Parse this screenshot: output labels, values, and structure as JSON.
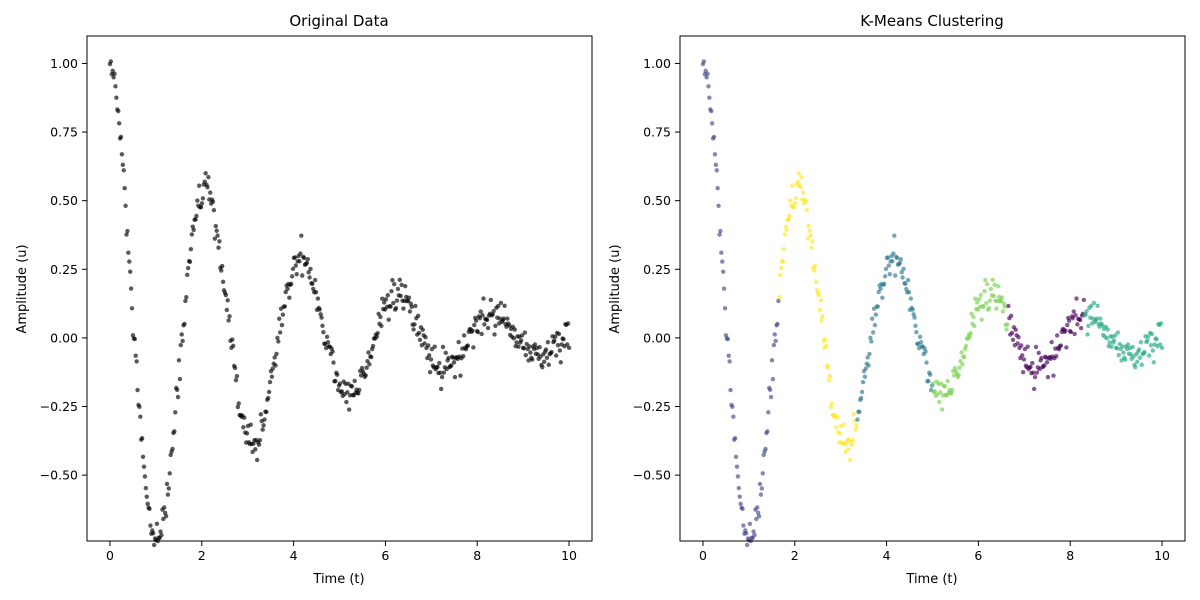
{
  "chart_data": [
    {
      "type": "scatter",
      "title": "Original Data",
      "xlabel": "Time (t)",
      "ylabel": "Amplitude (u)",
      "xlim": [
        -0.5,
        10.5
      ],
      "ylim": [
        -0.74,
        1.1
      ],
      "xticks": [
        "0",
        "2",
        "4",
        "6",
        "8",
        "10"
      ],
      "yticks": [
        "−0.50",
        "−0.25",
        "0.00",
        "0.25",
        "0.50",
        "0.75",
        "1.00"
      ],
      "grid": false,
      "legend": "none",
      "point_color": "#000000",
      "model": {
        "form": "u(t) = exp(-0.3 t) cos(3 t)",
        "t_range": [
          0,
          10
        ],
        "n_points": 500,
        "noise_sd": 0.03
      }
    },
    {
      "type": "scatter",
      "title": "K-Means Clustering",
      "xlabel": "Time (t)",
      "ylabel": "Amplitude (u)",
      "xlim": [
        -0.5,
        10.5
      ],
      "ylim": [
        -0.74,
        1.1
      ],
      "xticks": [
        "0",
        "2",
        "4",
        "6",
        "8",
        "10"
      ],
      "yticks": [
        "−0.50",
        "−0.25",
        "0.00",
        "0.25",
        "0.50",
        "0.75",
        "1.00"
      ],
      "grid": false,
      "legend": "none",
      "model": {
        "form": "u(t) = exp(-0.3 t) cos(3 t)",
        "t_range": [
          0,
          10
        ],
        "n_points": 500,
        "noise_sd": 0.03
      },
      "clusters": [
        {
          "t_range": [
            0.0,
            1.65
          ],
          "color": "#404788"
        },
        {
          "t_range": [
            1.65,
            3.35
          ],
          "color": "#fde725"
        },
        {
          "t_range": [
            3.35,
            5.0
          ],
          "color": "#2a788e"
        },
        {
          "t_range": [
            5.0,
            6.65
          ],
          "color": "#7ad151"
        },
        {
          "t_range": [
            6.65,
            8.3
          ],
          "color": "#440154"
        },
        {
          "t_range": [
            8.3,
            10.0
          ],
          "color": "#22a884"
        }
      ]
    }
  ]
}
